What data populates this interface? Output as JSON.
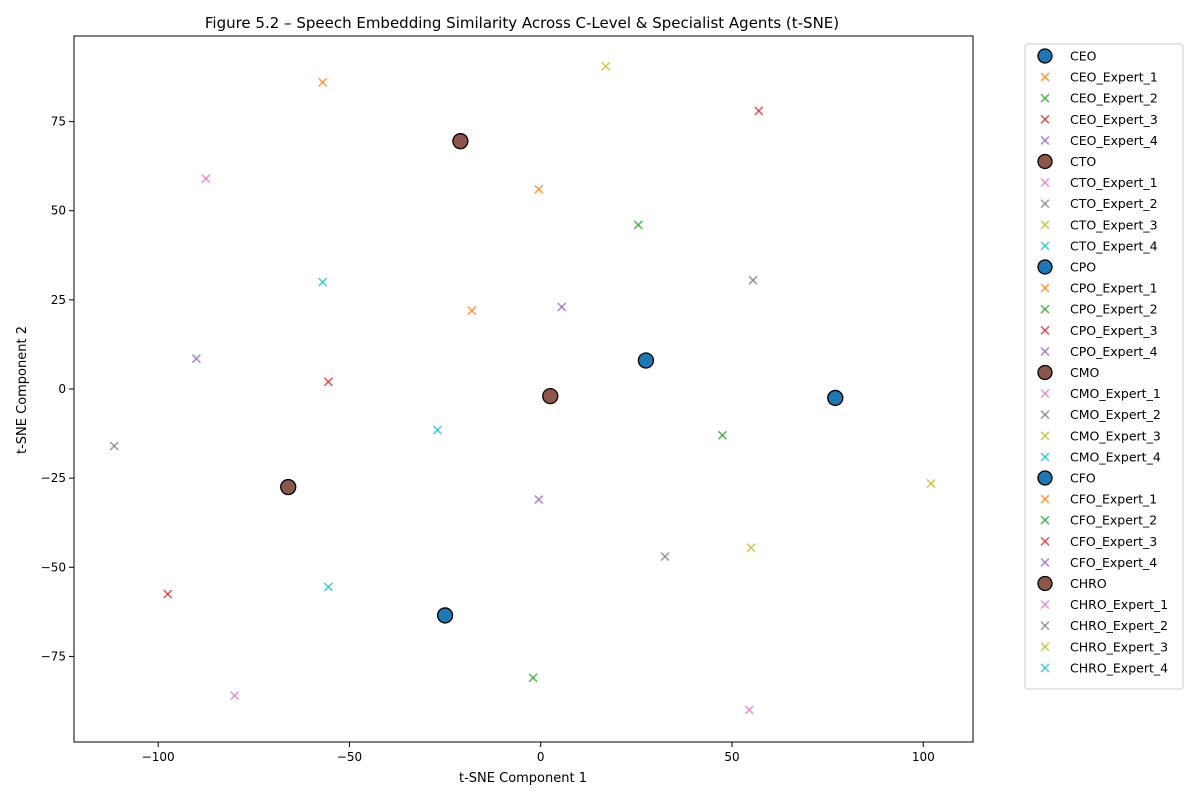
{
  "chart_data": {
    "type": "scatter",
    "title": "Figure 5.2 – Speech Embedding Similarity Across C-Level & Specialist Agents (t-SNE)",
    "xlabel": "t-SNE Component 1",
    "ylabel": "t-SNE Component 2",
    "xlim": [
      -122,
      113
    ],
    "ylim": [
      -99,
      99
    ],
    "xticks": [
      -100,
      -50,
      0,
      50,
      100
    ],
    "yticks": [
      -75,
      -50,
      -25,
      0,
      25,
      50,
      75
    ],
    "grid": false,
    "legend_position": "outside-right",
    "series": [
      {
        "name": "CEO",
        "marker": "circle",
        "color": "#1f77b4",
        "x": 77,
        "y": -2.5
      },
      {
        "name": "CEO_Expert_1",
        "marker": "x",
        "color": "#ff7f0e",
        "x": -57,
        "y": 86
      },
      {
        "name": "CEO_Expert_2",
        "marker": "x",
        "color": "#2ca02c",
        "x": 25.5,
        "y": 46
      },
      {
        "name": "CEO_Expert_3",
        "marker": "x",
        "color": "#d62728",
        "x": 57,
        "y": 78
      },
      {
        "name": "CEO_Expert_4",
        "marker": "x",
        "color": "#9467bd",
        "x": 5.5,
        "y": 23
      },
      {
        "name": "CTO",
        "marker": "circle",
        "color": "#8c564b",
        "x": -21,
        "y": 69.5
      },
      {
        "name": "CTO_Expert_1",
        "marker": "x",
        "color": "#e377c2",
        "x": -87.5,
        "y": 59
      },
      {
        "name": "CTO_Expert_2",
        "marker": "x",
        "color": "#7f7f7f",
        "x": 55.5,
        "y": 30.5
      },
      {
        "name": "CTO_Expert_3",
        "marker": "x",
        "color": "#bcbd22",
        "x": 17,
        "y": 90.5
      },
      {
        "name": "CTO_Expert_4",
        "marker": "x",
        "color": "#17becf",
        "x": -57,
        "y": 30
      },
      {
        "name": "CPO",
        "marker": "circle",
        "color": "#1f77b4",
        "x": 27.5,
        "y": 8
      },
      {
        "name": "CPO_Expert_1",
        "marker": "x",
        "color": "#ff7f0e",
        "x": -18,
        "y": 22
      },
      {
        "name": "CPO_Expert_2",
        "marker": "x",
        "color": "#2ca02c",
        "x": 47.5,
        "y": -13
      },
      {
        "name": "CPO_Expert_3",
        "marker": "x",
        "color": "#d62728",
        "x": -55.5,
        "y": 2
      },
      {
        "name": "CPO_Expert_4",
        "marker": "x",
        "color": "#9467bd",
        "x": -90,
        "y": 8.5
      },
      {
        "name": "CMO",
        "marker": "circle",
        "color": "#8c564b",
        "x": 2.5,
        "y": -2
      },
      {
        "name": "CMO_Expert_1",
        "marker": "x",
        "color": "#e377c2",
        "x": 54.5,
        "y": -90
      },
      {
        "name": "CMO_Expert_2",
        "marker": "x",
        "color": "#7f7f7f",
        "x": -111.5,
        "y": -16
      },
      {
        "name": "CMO_Expert_3",
        "marker": "x",
        "color": "#bcbd22",
        "x": 55,
        "y": -44.5
      },
      {
        "name": "CMO_Expert_4",
        "marker": "x",
        "color": "#17becf",
        "x": -27,
        "y": -11.5
      },
      {
        "name": "CFO",
        "marker": "circle",
        "color": "#1f77b4",
        "x": -25,
        "y": -63.5
      },
      {
        "name": "CFO_Expert_1",
        "marker": "x",
        "color": "#ff7f0e",
        "x": -0.5,
        "y": 56
      },
      {
        "name": "CFO_Expert_2",
        "marker": "x",
        "color": "#2ca02c",
        "x": -2,
        "y": -81
      },
      {
        "name": "CFO_Expert_3",
        "marker": "x",
        "color": "#d62728",
        "x": -97.5,
        "y": -57.5
      },
      {
        "name": "CFO_Expert_4",
        "marker": "x",
        "color": "#9467bd",
        "x": -0.5,
        "y": -31
      },
      {
        "name": "CHRO",
        "marker": "circle",
        "color": "#8c564b",
        "x": -66,
        "y": -27.5
      },
      {
        "name": "CHRO_Expert_1",
        "marker": "x",
        "color": "#e377c2",
        "x": -80,
        "y": -86
      },
      {
        "name": "CHRO_Expert_2",
        "marker": "x",
        "color": "#7f7f7f",
        "x": 32.5,
        "y": -47
      },
      {
        "name": "CHRO_Expert_3",
        "marker": "x",
        "color": "#bcbd22",
        "x": 102,
        "y": -26.5
      },
      {
        "name": "CHRO_Expert_4",
        "marker": "x",
        "color": "#17becf",
        "x": -55.5,
        "y": -55.5
      }
    ]
  }
}
